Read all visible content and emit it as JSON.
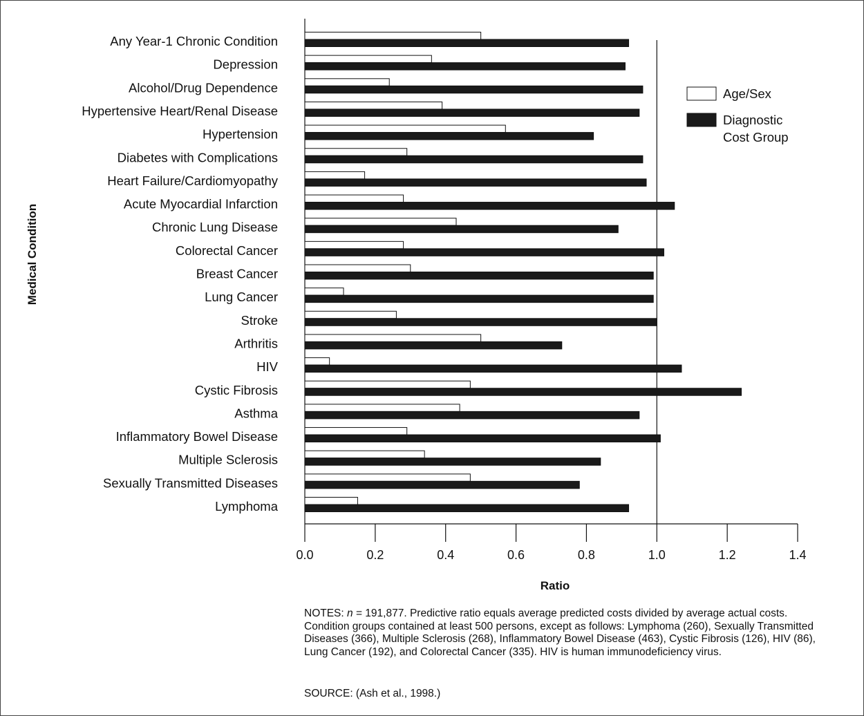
{
  "chart_data": {
    "type": "bar",
    "orientation": "horizontal",
    "ylabel": "Medical Condition",
    "xlabel": "Ratio",
    "xlim": [
      0.0,
      1.4
    ],
    "xticks": [
      "0.0",
      "0.2",
      "0.4",
      "0.6",
      "0.8",
      "1.0",
      "1.2",
      "1.4"
    ],
    "reference_line": 1.0,
    "grid": false,
    "legend_placement": "top-right",
    "categories": [
      "Any Year-1 Chronic Condition",
      "Depression",
      "Alcohol/Drug Dependence",
      "Hypertensive Heart/Renal Disease",
      "Hypertension",
      "Diabetes with Complications",
      "Heart Failure/Cardiomyopathy",
      "Acute Myocardial Infarction",
      "Chronic Lung Disease",
      "Colorectal Cancer",
      "Breast Cancer",
      "Lung Cancer",
      "Stroke",
      "Arthritis",
      "HIV",
      "Cystic Fibrosis",
      "Asthma",
      "Inflammatory Bowel Disease",
      "Multiple Sclerosis",
      "Sexually Transmitted Diseases",
      "Lymphoma"
    ],
    "series": [
      {
        "name": "Age/Sex",
        "color": "#ffffff",
        "values": [
          0.5,
          0.36,
          0.24,
          0.39,
          0.57,
          0.29,
          0.17,
          0.28,
          0.43,
          0.28,
          0.3,
          0.11,
          0.26,
          0.5,
          0.07,
          0.47,
          0.44,
          0.29,
          0.34,
          0.47,
          0.15
        ]
      },
      {
        "name": "Diagnostic Cost Group",
        "color": "#1a1a1a",
        "values": [
          0.92,
          0.91,
          0.96,
          0.95,
          0.82,
          0.96,
          0.97,
          1.05,
          0.89,
          1.02,
          0.99,
          0.99,
          1.0,
          0.73,
          1.07,
          1.24,
          0.95,
          1.01,
          0.84,
          0.78,
          0.92
        ]
      }
    ]
  },
  "legend": {
    "items": [
      "Age/Sex",
      "Diagnostic Cost Group"
    ]
  },
  "notes": {
    "prefix": "NOTES: ",
    "n_symbol": "n",
    "text": " = 191,877. Predictive ratio equals average predicted costs divided by average actual costs. Condition groups contained at least 500 persons, except as follows: Lymphoma (260), Sexually Transmitted Diseases (366), Multiple Sclerosis (268), Inflammatory Bowel Disease (463), Cystic Fibrosis (126), HIV (86), Lung Cancer (192), and Colorectal Cancer (335). HIV is human immunodeficiency virus."
  },
  "source": "SOURCE: (Ash et al., 1998.)"
}
